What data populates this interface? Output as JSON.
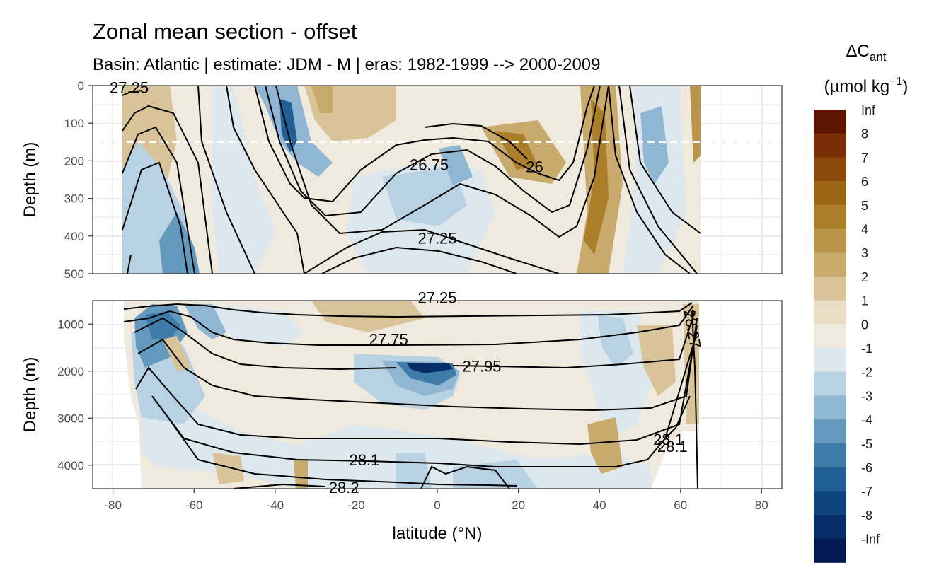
{
  "chart_data": {
    "type": "contour",
    "title": "Zonal mean section - offset",
    "subtitle": "Basin: Atlantic | estimate: JDM - M | eras: 1982-1999 --> 2000-2009",
    "xlabel": "latitude (°N)",
    "ylabel": "Depth (m)",
    "xlim": [
      -85,
      85
    ],
    "x_ticks": [
      -80,
      -60,
      -40,
      -20,
      0,
      20,
      40,
      60,
      80
    ],
    "panels": [
      {
        "name": "upper",
        "ylim": [
          500,
          0
        ],
        "y_ticks": [
          0,
          100,
          200,
          300,
          400,
          500
        ],
        "dashed_reference_depth": 150,
        "isopycnal_labels": [
          {
            "text": "27.25",
            "lat": -76,
            "depth": 5
          },
          {
            "text": "26.75",
            "lat": -2,
            "depth": 210
          },
          {
            "text": "26",
            "lat": 24,
            "depth": 215
          },
          {
            "text": "27.25",
            "lat": 0,
            "depth": 405
          }
        ]
      },
      {
        "name": "lower",
        "ylim": [
          4500,
          500
        ],
        "y_ticks": [
          1000,
          2000,
          3000,
          4000
        ],
        "isopycnal_labels": [
          {
            "text": "27.25",
            "lat": 0,
            "depth": 430
          },
          {
            "text": "27.75",
            "lat": -12,
            "depth": 1320
          },
          {
            "text": "27.95",
            "lat": 11,
            "depth": 1890
          },
          {
            "text": "28.1",
            "lat": -18,
            "depth": 3880
          },
          {
            "text": "28.1",
            "lat": 57,
            "depth": 3450
          },
          {
            "text": "28.1",
            "lat": 58,
            "depth": 3600
          },
          {
            "text": "28.2",
            "lat": -23,
            "depth": 4470
          },
          {
            "text": "28.27",
            "lat": 63,
            "depth": 1100
          }
        ]
      }
    ],
    "legend": {
      "title_main": "ΔC",
      "title_sub": "ant",
      "title_unit": "(µmol kg",
      "title_exp": "−1",
      "title_close": ")",
      "labels": [
        "Inf",
        "8",
        "7",
        "6",
        "5",
        "4",
        "3",
        "2",
        "1",
        "0",
        "-1",
        "-2",
        "-3",
        "-4",
        "-5",
        "-6",
        "-7",
        "-8",
        "-Inf"
      ],
      "colors": [
        "#5e1500",
        "#7a2e05",
        "#8c4a0a",
        "#9c6515",
        "#ab7e2a",
        "#ba9448",
        "#c9aa6d",
        "#d9c49a",
        "#e9dec5",
        "#f0e9dd",
        "#dce7ee",
        "#b9d2e3",
        "#8fb7d3",
        "#6399bd",
        "#3e7ba8",
        "#215f95",
        "#0e457f",
        "#072d68",
        "#021852"
      ]
    }
  }
}
